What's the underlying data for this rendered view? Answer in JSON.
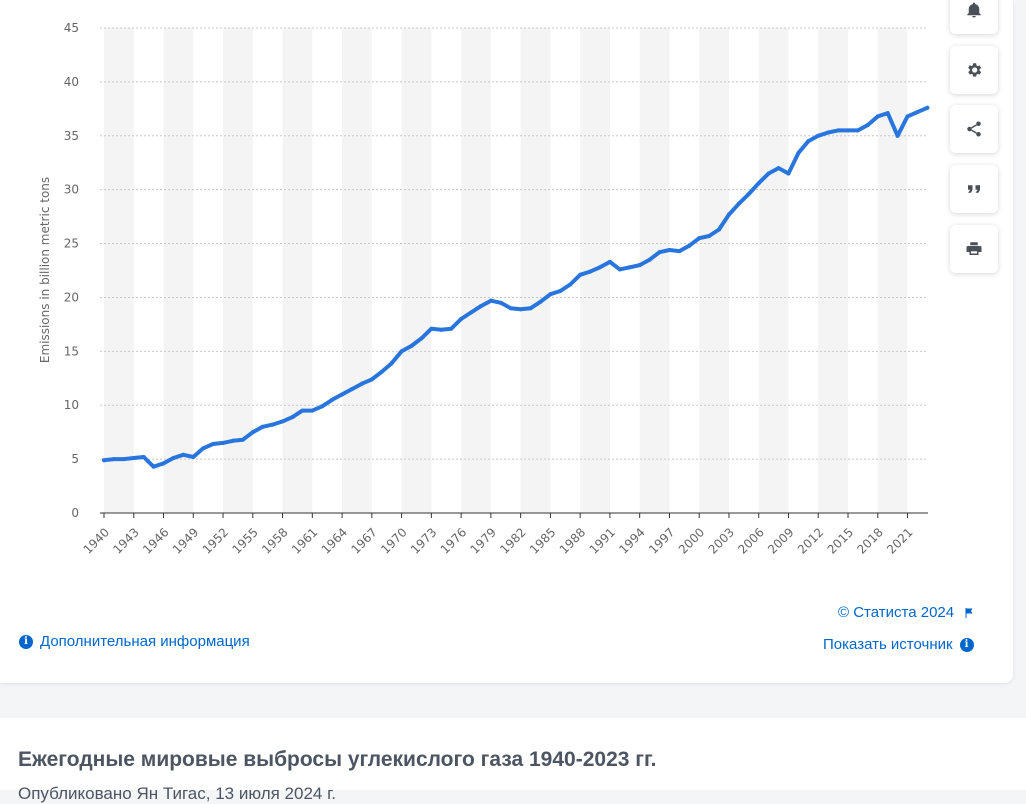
{
  "chart_data": {
    "type": "line",
    "title": "",
    "xlabel": "",
    "ylabel": "Emissions in billion metric tons",
    "ylim": [
      0,
      45
    ],
    "yticks": [
      0,
      5,
      10,
      15,
      20,
      25,
      30,
      35,
      40,
      45
    ],
    "xtick_labels": [
      "1940",
      "1943",
      "1946",
      "1949",
      "1952",
      "1955",
      "1958",
      "1961",
      "1964",
      "1967",
      "1970",
      "1973",
      "1976",
      "1979",
      "1982",
      "1985",
      "1988",
      "1991",
      "1994",
      "1997",
      "2000",
      "2003",
      "2006",
      "2009",
      "2012",
      "2015",
      "2018",
      "2021"
    ],
    "x": [
      1940,
      1941,
      1942,
      1943,
      1944,
      1945,
      1946,
      1947,
      1948,
      1949,
      1950,
      1951,
      1952,
      1953,
      1954,
      1955,
      1956,
      1957,
      1958,
      1959,
      1960,
      1961,
      1962,
      1963,
      1964,
      1965,
      1966,
      1967,
      1968,
      1969,
      1970,
      1971,
      1972,
      1973,
      1974,
      1975,
      1976,
      1977,
      1978,
      1979,
      1980,
      1981,
      1982,
      1983,
      1984,
      1985,
      1986,
      1987,
      1988,
      1989,
      1990,
      1991,
      1992,
      1993,
      1994,
      1995,
      1996,
      1997,
      1998,
      1999,
      2000,
      2001,
      2002,
      2003,
      2004,
      2005,
      2006,
      2007,
      2008,
      2009,
      2010,
      2011,
      2012,
      2013,
      2014,
      2015,
      2016,
      2017,
      2018,
      2019,
      2020,
      2021,
      2022,
      2023
    ],
    "series": [
      {
        "name": "Emissions",
        "color": "#2876dd",
        "values": [
          4.9,
          5.0,
          5.0,
          5.1,
          5.2,
          4.3,
          4.6,
          5.1,
          5.4,
          5.2,
          6.0,
          6.4,
          6.5,
          6.7,
          6.8,
          7.5,
          8.0,
          8.2,
          8.5,
          8.9,
          9.5,
          9.5,
          9.9,
          10.5,
          11.0,
          11.5,
          12.0,
          12.4,
          13.1,
          13.9,
          15.0,
          15.5,
          16.2,
          17.1,
          17.0,
          17.1,
          18.0,
          18.6,
          19.2,
          19.7,
          19.5,
          19.0,
          18.9,
          19.0,
          19.6,
          20.3,
          20.6,
          21.2,
          22.1,
          22.4,
          22.8,
          23.3,
          22.6,
          22.8,
          23.0,
          23.5,
          24.2,
          24.4,
          24.3,
          24.8,
          25.5,
          25.7,
          26.3,
          27.7,
          28.7,
          29.6,
          30.6,
          31.5,
          32.0,
          31.5,
          33.4,
          34.5,
          35.0,
          35.3,
          35.5,
          35.5,
          35.5,
          36.0,
          36.8,
          37.1,
          35.0,
          36.8,
          37.2,
          37.6
        ]
      }
    ],
    "band_color": "#f4f4f4",
    "grid_color": "#c8c8c8"
  },
  "copyright": "© Статиста 2024",
  "more_info": "Дополнительная информация",
  "show_source": "Показать источник",
  "page_title": "Ежегодные мировые выбросы углекислого газа 1940-2023 гг.",
  "subtitle": "Опубликовано Ян Тигас, 13 июля 2024 г."
}
